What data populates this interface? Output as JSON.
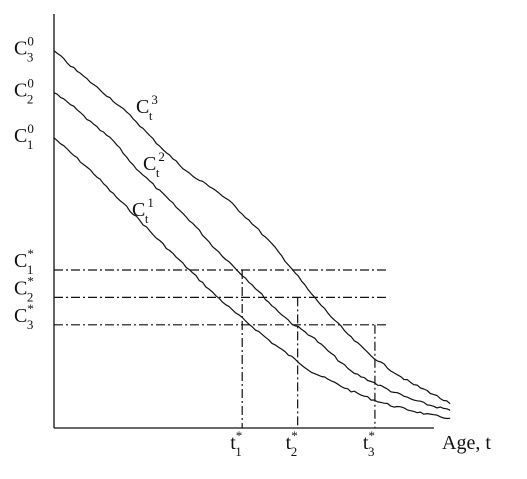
{
  "chart_data": {
    "type": "line",
    "title": "",
    "xlabel": "Age, t",
    "ylabel": "",
    "grid": false,
    "legend": "none",
    "series": [
      {
        "name": "C_t^1",
        "x": [
          0,
          1,
          2,
          3,
          4,
          5,
          6,
          7,
          8,
          9,
          10,
          11,
          12,
          13,
          14,
          15,
          16,
          17,
          18,
          19,
          20
        ],
        "y": [
          87.0,
          81.5,
          76.0,
          69.5,
          63.5,
          57.0,
          51.0,
          45.0,
          39.0,
          33.5,
          28.5,
          23.5,
          19.0,
          14.5,
          11.5,
          8.5,
          6.0,
          4.0,
          2.5,
          1.0,
          0.0
        ]
      },
      {
        "name": "C_t^2",
        "x": [
          0,
          1,
          2,
          3,
          4,
          5,
          6,
          7,
          8,
          9,
          10,
          11,
          12,
          13,
          14,
          15,
          16,
          17,
          18,
          19,
          20
        ],
        "y": [
          101.0,
          96.5,
          91.0,
          86.0,
          78.5,
          72.5,
          66.5,
          60.5,
          53.5,
          47.5,
          41.5,
          35.0,
          29.5,
          25.5,
          20.0,
          14.5,
          11.5,
          8.5,
          6.0,
          4.0,
          2.5
        ]
      },
      {
        "name": "C_t^3",
        "x": [
          0,
          1,
          2,
          3,
          4,
          5,
          6,
          7,
          8,
          9,
          10,
          11,
          12,
          13,
          14,
          15,
          16,
          17,
          18,
          19,
          20
        ],
        "y": [
          114.0,
          108.5,
          103.5,
          98.5,
          93.0,
          86.5,
          80.5,
          75.0,
          71.5,
          66.5,
          60.5,
          54.0,
          46.5,
          38.5,
          31.5,
          25.0,
          19.5,
          15.0,
          11.0,
          8.0,
          4.5
        ]
      }
    ],
    "thresholds": [
      {
        "label": "C*1",
        "y": 46.0,
        "t": 9.5
      },
      {
        "label": "C*2",
        "y": 37.5,
        "t": 12.3
      },
      {
        "label": "C*3",
        "y": 29.0,
        "t": 16.2
      }
    ],
    "initial_values": [
      {
        "label": "C01",
        "y": 87.0
      },
      {
        "label": "C02",
        "y": 101.0
      },
      {
        "label": "C03",
        "y": 114.0
      }
    ],
    "xlim": [
      0,
      21
    ],
    "ylim": [
      -3,
      126
    ]
  },
  "labels": {
    "c0_base": "C",
    "c0_sup": "0",
    "c0_subs": [
      "1",
      "2",
      "3"
    ],
    "cstar_base": "C",
    "cstar_sup": "*",
    "cstar_subs": [
      "1",
      "2",
      "3"
    ],
    "curve_base": "C",
    "curve_sub": "t",
    "curve_sups": [
      "1",
      "2",
      "3"
    ],
    "tstar_base": "t",
    "tstar_sup": "*",
    "tstar_subs": [
      "1",
      "2",
      "3"
    ],
    "xaxis": "Age, t"
  }
}
